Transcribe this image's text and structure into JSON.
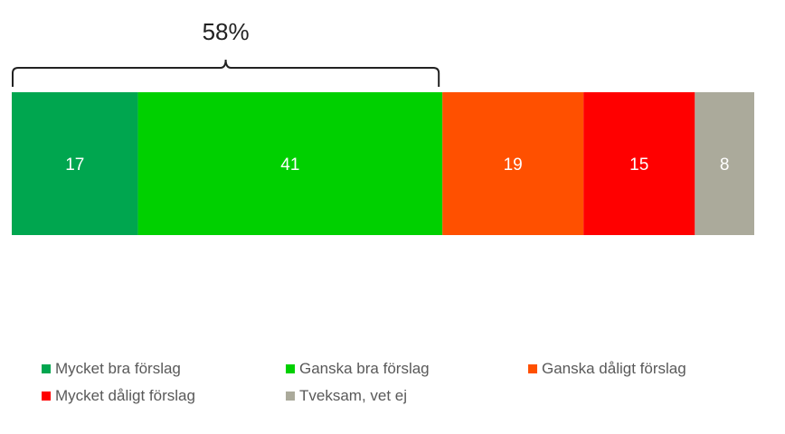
{
  "chart_data": {
    "type": "bar",
    "orientation": "horizontal-stacked",
    "series": [
      {
        "name": "Mycket bra förslag",
        "value": 17,
        "color": "#00A64F"
      },
      {
        "name": "Ganska bra förslag",
        "value": 41,
        "color": "#00D000"
      },
      {
        "name": "Ganska dåligt förslag",
        "value": 19,
        "color": "#FF5000"
      },
      {
        "name": "Mycket dåligt förslag",
        "value": 15,
        "color": "#FF0000"
      },
      {
        "name": "Tveksam, vet ej",
        "value": 8,
        "color": "#ABAA9B"
      }
    ],
    "total": 100,
    "bracket": {
      "label": "58%",
      "covers_series": [
        0,
        1
      ]
    },
    "legend_position": "bottom"
  }
}
